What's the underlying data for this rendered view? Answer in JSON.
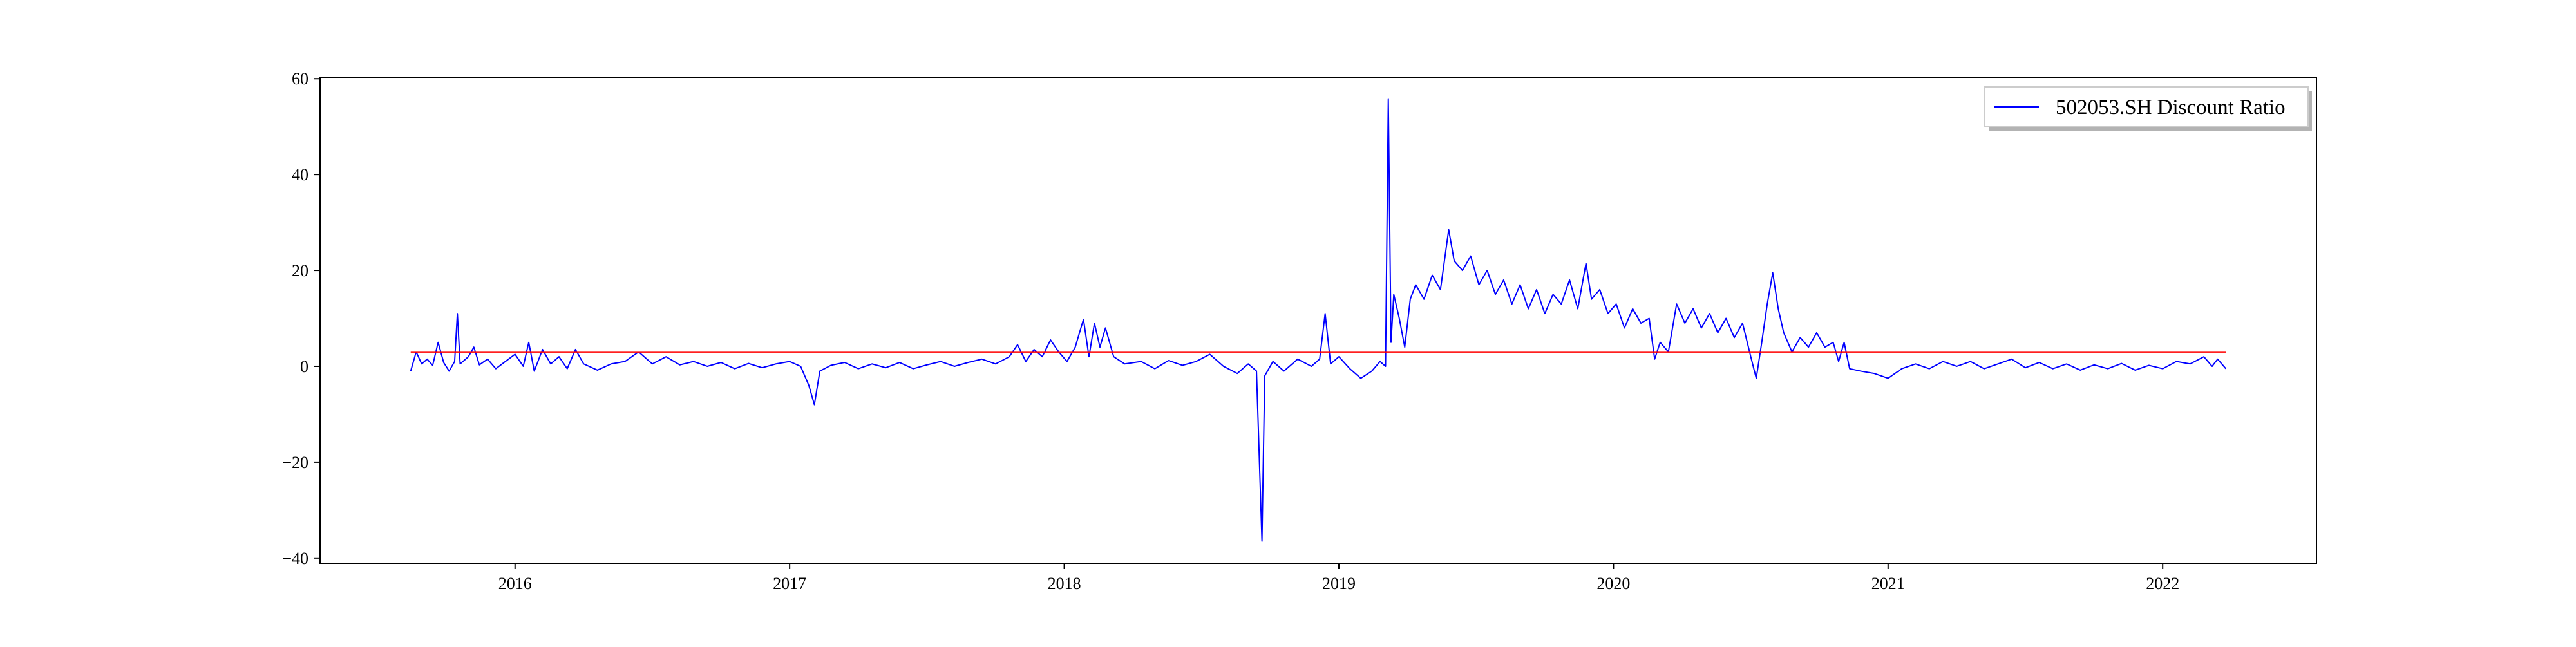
{
  "chart_data": {
    "type": "line",
    "x": [
      2015.62,
      2015.64,
      2015.66,
      2015.68,
      2015.7,
      2015.72,
      2015.74,
      2015.76,
      2015.78,
      2015.79,
      2015.8,
      2015.83,
      2015.85,
      2015.87,
      2015.9,
      2015.93,
      2015.96,
      2016.0,
      2016.03,
      2016.05,
      2016.07,
      2016.1,
      2016.13,
      2016.16,
      2016.19,
      2016.22,
      2016.25,
      2016.3,
      2016.35,
      2016.4,
      2016.45,
      2016.5,
      2016.55,
      2016.6,
      2016.65,
      2016.7,
      2016.75,
      2016.8,
      2016.85,
      2016.9,
      2016.95,
      2017.0,
      2017.04,
      2017.07,
      2017.09,
      2017.11,
      2017.15,
      2017.2,
      2017.25,
      2017.3,
      2017.35,
      2017.4,
      2017.45,
      2017.5,
      2017.55,
      2017.6,
      2017.65,
      2017.7,
      2017.75,
      2017.8,
      2017.83,
      2017.86,
      2017.89,
      2017.92,
      2017.95,
      2017.98,
      2018.01,
      2018.04,
      2018.07,
      2018.09,
      2018.11,
      2018.13,
      2018.15,
      2018.18,
      2018.22,
      2018.28,
      2018.33,
      2018.38,
      2018.43,
      2018.48,
      2018.53,
      2018.58,
      2018.63,
      2018.67,
      2018.7,
      2018.72,
      2018.73,
      2018.76,
      2018.8,
      2018.85,
      2018.9,
      2018.93,
      2018.95,
      2018.97,
      2019.0,
      2019.04,
      2019.08,
      2019.12,
      2019.15,
      2019.17,
      2019.18,
      2019.19,
      2019.2,
      2019.22,
      2019.24,
      2019.26,
      2019.28,
      2019.31,
      2019.34,
      2019.37,
      2019.4,
      2019.42,
      2019.45,
      2019.48,
      2019.51,
      2019.54,
      2019.57,
      2019.6,
      2019.63,
      2019.66,
      2019.69,
      2019.72,
      2019.75,
      2019.78,
      2019.81,
      2019.84,
      2019.87,
      2019.9,
      2019.92,
      2019.95,
      2019.98,
      2020.01,
      2020.04,
      2020.07,
      2020.1,
      2020.13,
      2020.15,
      2020.17,
      2020.2,
      2020.23,
      2020.26,
      2020.29,
      2020.32,
      2020.35,
      2020.38,
      2020.41,
      2020.44,
      2020.47,
      2020.5,
      2020.52,
      2020.54,
      2020.56,
      2020.58,
      2020.6,
      2020.62,
      2020.65,
      2020.68,
      2020.71,
      2020.74,
      2020.77,
      2020.8,
      2020.82,
      2020.84,
      2020.86,
      2020.9,
      2020.95,
      2021.0,
      2021.05,
      2021.1,
      2021.15,
      2021.2,
      2021.25,
      2021.3,
      2021.35,
      2021.4,
      2021.45,
      2021.5,
      2021.55,
      2021.6,
      2021.65,
      2021.7,
      2021.75,
      2021.8,
      2021.85,
      2021.9,
      2021.95,
      2022.0,
      2022.05,
      2022.1,
      2022.15,
      2022.18,
      2022.2,
      2022.23
    ],
    "series": [
      {
        "name": "502053.SH Discount Ratio",
        "color": "#0000ff",
        "values": [
          -1.0,
          3.0,
          0.5,
          1.5,
          0.2,
          5.0,
          0.8,
          -1.0,
          1.0,
          11.0,
          0.5,
          2.0,
          4.0,
          0.3,
          1.5,
          -0.5,
          0.8,
          2.5,
          0.0,
          5.0,
          -1.0,
          3.5,
          0.5,
          2.0,
          -0.5,
          3.5,
          0.5,
          -0.8,
          0.5,
          1.0,
          3.0,
          0.5,
          2.0,
          0.3,
          1.0,
          0.0,
          0.8,
          -0.5,
          0.6,
          -0.3,
          0.5,
          1.0,
          0.0,
          -4.0,
          -8.0,
          -1.0,
          0.2,
          0.8,
          -0.5,
          0.5,
          -0.3,
          0.8,
          -0.5,
          0.3,
          1.0,
          0.0,
          0.8,
          1.5,
          0.5,
          2.0,
          4.5,
          1.0,
          3.5,
          2.0,
          5.5,
          3.0,
          1.0,
          4.0,
          9.8,
          2.0,
          9.0,
          4.0,
          8.0,
          2.0,
          0.5,
          1.0,
          -0.5,
          1.2,
          0.2,
          1.0,
          2.5,
          0.0,
          -1.5,
          0.5,
          -1.0,
          -36.5,
          -2.0,
          1.0,
          -1.0,
          1.5,
          0.0,
          1.5,
          11.0,
          0.5,
          2.0,
          -0.5,
          -2.5,
          -1.0,
          1.0,
          0.0,
          55.7,
          5.0,
          15.0,
          10.0,
          4.0,
          14.0,
          17.0,
          14.0,
          19.0,
          16.0,
          28.5,
          22.0,
          20.0,
          23.0,
          17.0,
          20.0,
          15.0,
          18.0,
          13.0,
          17.0,
          12.0,
          16.0,
          11.0,
          15.0,
          13.0,
          18.0,
          12.0,
          21.5,
          14.0,
          16.0,
          11.0,
          13.0,
          8.0,
          12.0,
          9.0,
          10.0,
          1.5,
          5.0,
          3.0,
          13.0,
          9.0,
          12.0,
          8.0,
          11.0,
          7.0,
          10.0,
          6.0,
          9.0,
          2.0,
          -2.5,
          5.0,
          13.0,
          19.5,
          12.0,
          7.0,
          3.0,
          6.0,
          4.0,
          7.0,
          4.0,
          5.0,
          1.0,
          5.0,
          -0.5,
          -1.0,
          -1.5,
          -2.5,
          -0.5,
          0.5,
          -0.5,
          1.0,
          0.0,
          1.0,
          -0.5,
          0.5,
          1.5,
          -0.3,
          0.8,
          -0.5,
          0.5,
          -0.8,
          0.3,
          -0.5,
          0.6,
          -0.8,
          0.2,
          -0.5,
          1.0,
          0.5,
          2.0,
          0.0,
          1.5,
          -0.5
        ]
      }
    ],
    "threshold": {
      "value": 3,
      "color": "#ff0000"
    },
    "xlim": [
      2015.29,
      2022.56
    ],
    "xticks": [
      2016,
      2017,
      2018,
      2019,
      2020,
      2021,
      2022
    ],
    "ylim": [
      -41.1,
      60.3
    ],
    "yticks": [
      {
        "value": -40,
        "label": "−40"
      },
      {
        "value": -20,
        "label": "−20"
      },
      0,
      20,
      40,
      60
    ],
    "legend": "upper right",
    "grid": false
  }
}
